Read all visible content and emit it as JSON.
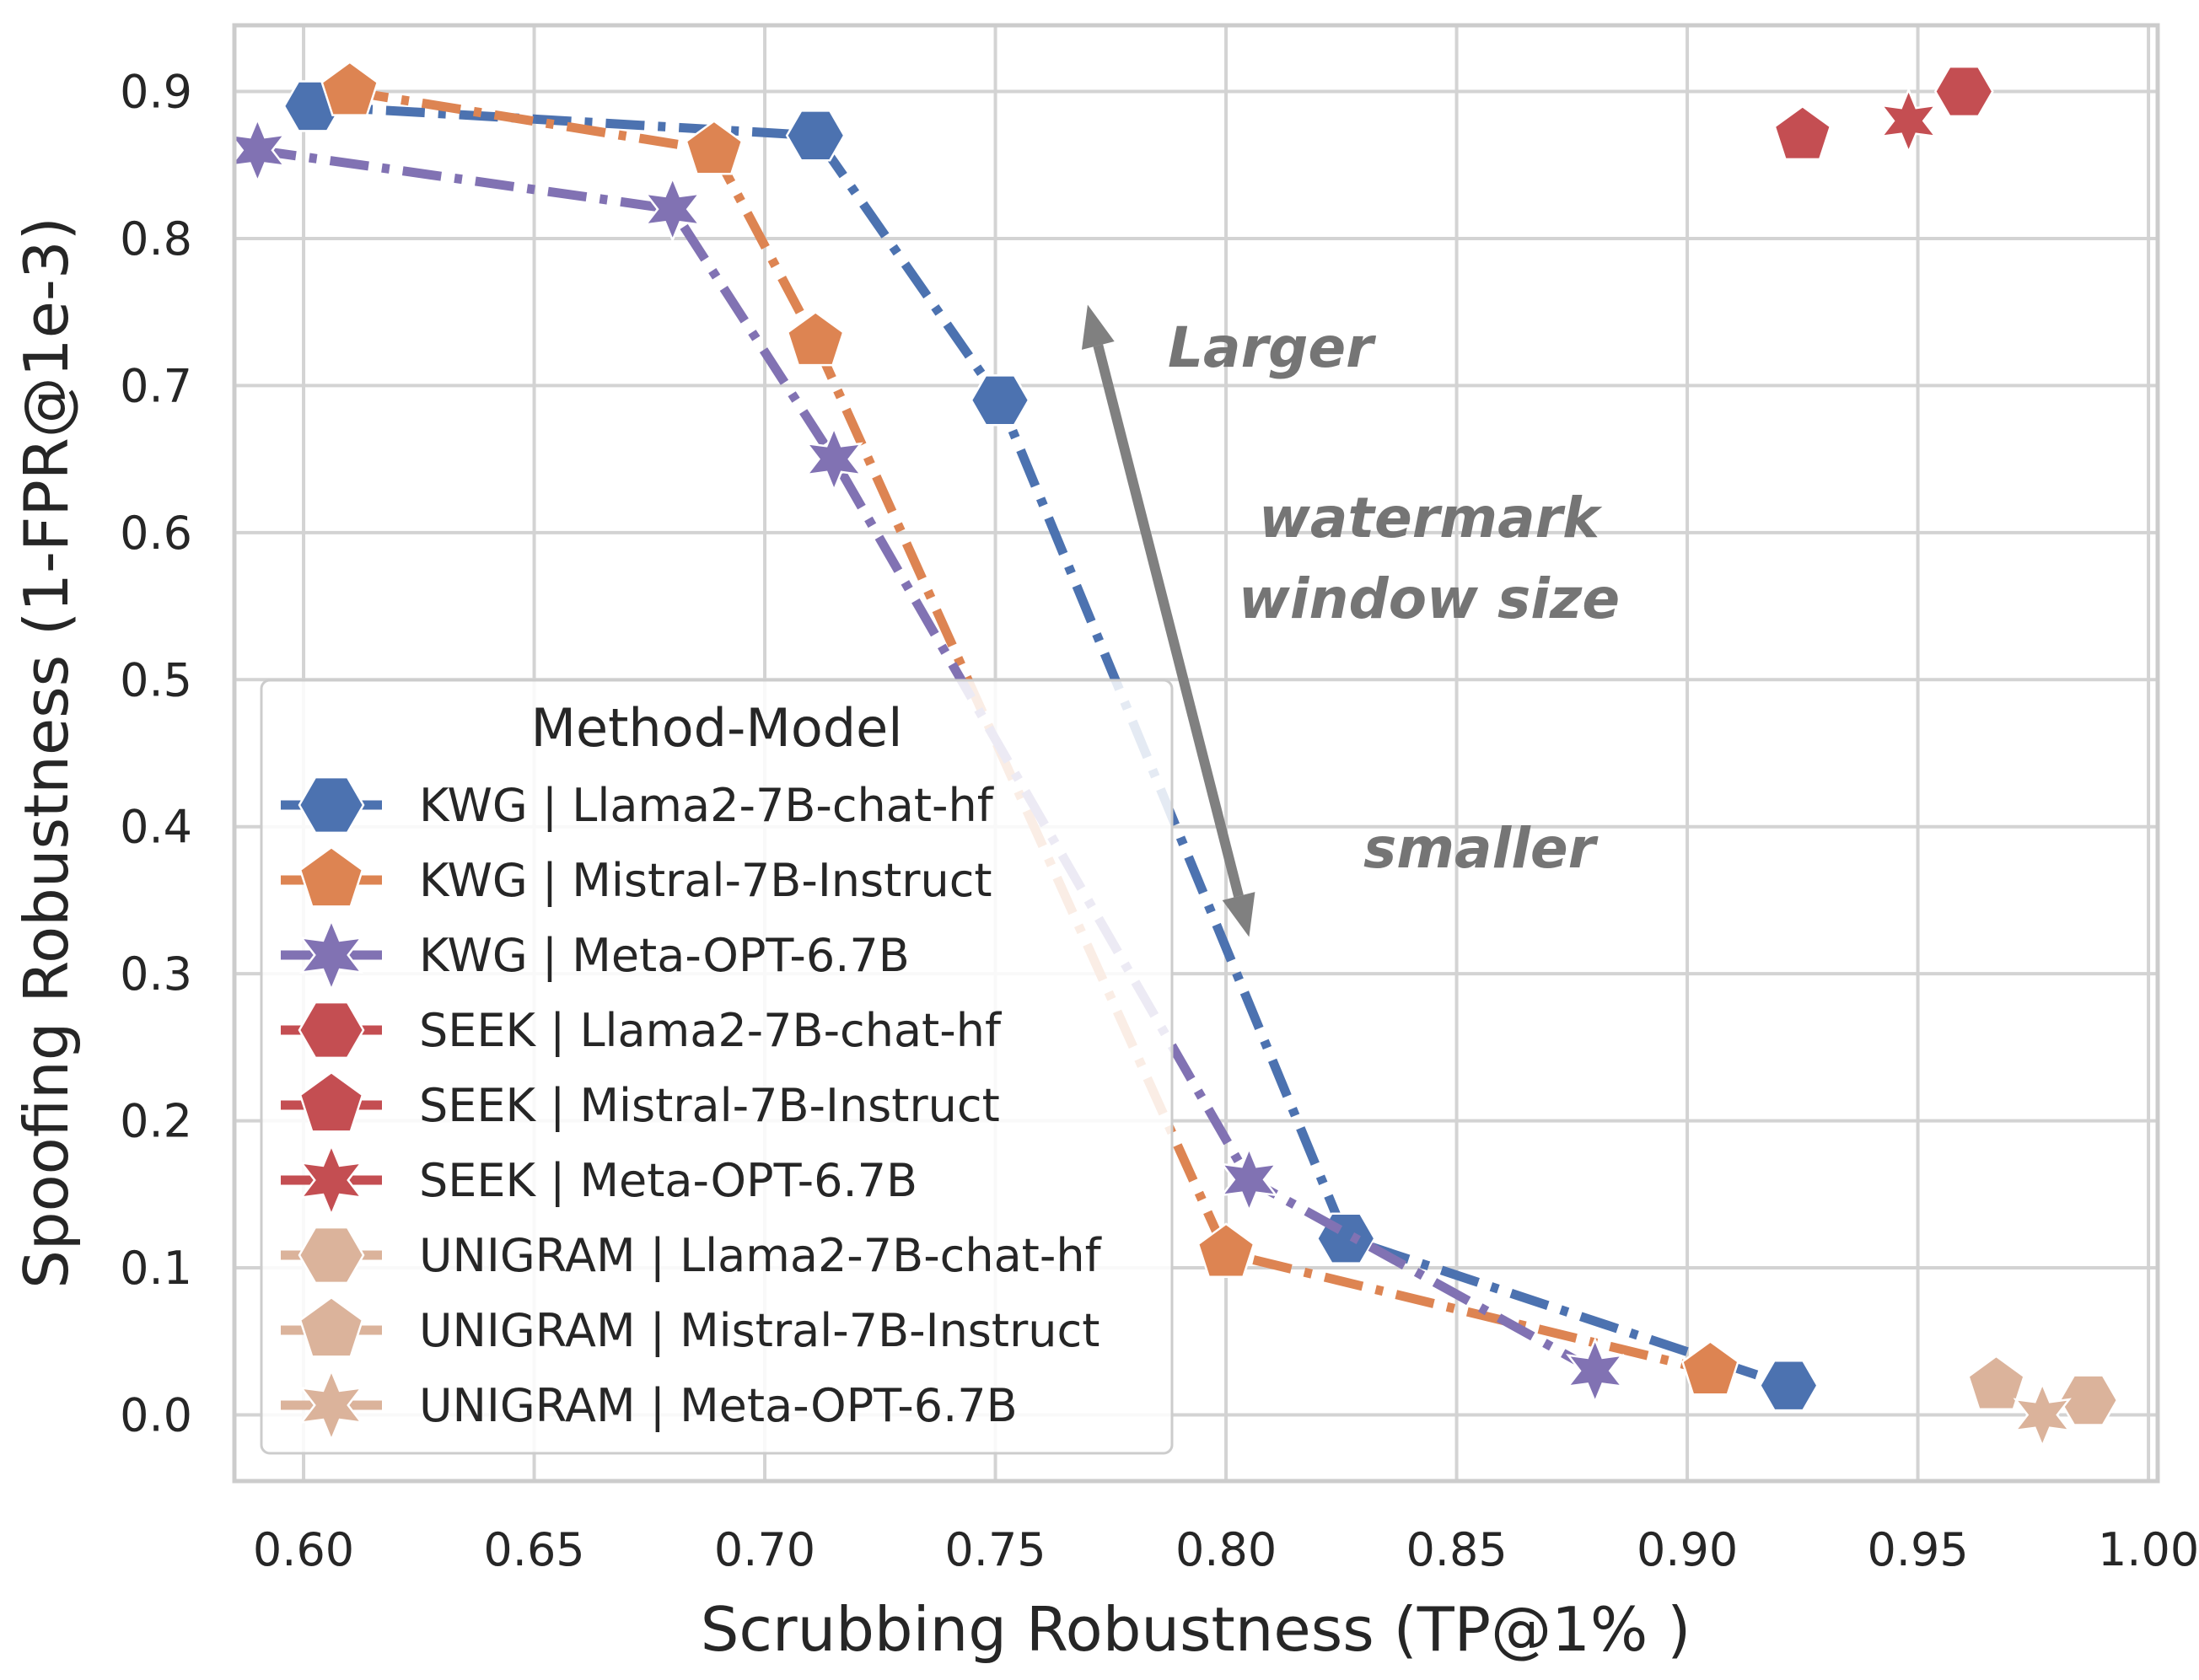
{
  "chart_data": {
    "type": "scatter",
    "title": "",
    "xlabel": "Scrubbing Robustness (TP@1% )",
    "ylabel": "Spoofing Robustness (1-FPR@1e-3)",
    "xlim": [
      0.585,
      1.002
    ],
    "ylim": [
      -0.045,
      0.945
    ],
    "xticks": [
      "0.60",
      "0.65",
      "0.70",
      "0.75",
      "0.80",
      "0.85",
      "0.90",
      "0.95",
      "1.00"
    ],
    "yticks": [
      "0.0",
      "0.1",
      "0.2",
      "0.3",
      "0.4",
      "0.5",
      "0.6",
      "0.7",
      "0.8",
      "0.9"
    ],
    "grid": true,
    "legend": {
      "title": "Method-Model",
      "placement": "center-left"
    },
    "series": [
      {
        "name": "KWG | Llama2-7B-chat-hf",
        "color": "#4c72b0",
        "marker": "hexagon",
        "line": "dashdot",
        "alpha": 1.0,
        "x": [
          0.602,
          0.711,
          0.751,
          0.826,
          0.922
        ],
        "y": [
          0.89,
          0.87,
          0.69,
          0.12,
          0.02
        ]
      },
      {
        "name": "KWG | Mistral-7B-Instruct",
        "color": "#dd8452",
        "marker": "pentagon",
        "line": "dashdot",
        "alpha": 1.0,
        "x": [
          0.61,
          0.689,
          0.711,
          0.8,
          0.905
        ],
        "y": [
          0.9,
          0.86,
          0.73,
          0.11,
          0.03
        ]
      },
      {
        "name": "KWG | Meta-OPT-6.7B",
        "color": "#8172b3",
        "marker": "star",
        "line": "dashdot",
        "alpha": 1.0,
        "x": [
          0.59,
          0.68,
          0.715,
          0.805,
          0.88
        ],
        "y": [
          0.86,
          0.82,
          0.65,
          0.16,
          0.03
        ]
      },
      {
        "name": "SEEK | Llama2-7B-chat-hf",
        "color": "#c44e52",
        "marker": "hexagon",
        "line": "none",
        "alpha": 1.0,
        "x": [
          0.96
        ],
        "y": [
          0.9
        ]
      },
      {
        "name": "SEEK | Mistral-7B-Instruct",
        "color": "#c44e52",
        "marker": "pentagon",
        "line": "none",
        "alpha": 1.0,
        "x": [
          0.925
        ],
        "y": [
          0.87
        ]
      },
      {
        "name": "SEEK | Meta-OPT-6.7B",
        "color": "#c44e52",
        "marker": "star",
        "line": "none",
        "alpha": 1.0,
        "x": [
          0.948
        ],
        "y": [
          0.88
        ]
      },
      {
        "name": "UNIGRAM | Llama2-7B-chat-hf",
        "color": "#dbb39b",
        "marker": "hexagon",
        "line": "none",
        "alpha": 1.0,
        "x": [
          0.987
        ],
        "y": [
          0.01
        ]
      },
      {
        "name": "UNIGRAM | Mistral-7B-Instruct",
        "color": "#dbb39b",
        "marker": "pentagon",
        "line": "none",
        "alpha": 1.0,
        "x": [
          0.967
        ],
        "y": [
          0.02
        ]
      },
      {
        "name": "UNIGRAM | Meta-OPT-6.7B",
        "color": "#dbb39b",
        "marker": "star",
        "line": "none",
        "alpha": 1.0,
        "x": [
          0.977
        ],
        "y": [
          0.0
        ]
      }
    ],
    "annotations": {
      "top_label": "Larger",
      "middle_label_1": "watermark",
      "middle_label_2": "window size",
      "bottom_label": "smaller",
      "arrow_color": "#808080",
      "arrow_from": [
        0.805,
        0.325
      ],
      "arrow_to": [
        0.77,
        0.755
      ]
    }
  },
  "colors": {
    "grid": "#d3d3d3",
    "frame": "#cccccc",
    "text": "#262626",
    "background": "#ffffff"
  }
}
